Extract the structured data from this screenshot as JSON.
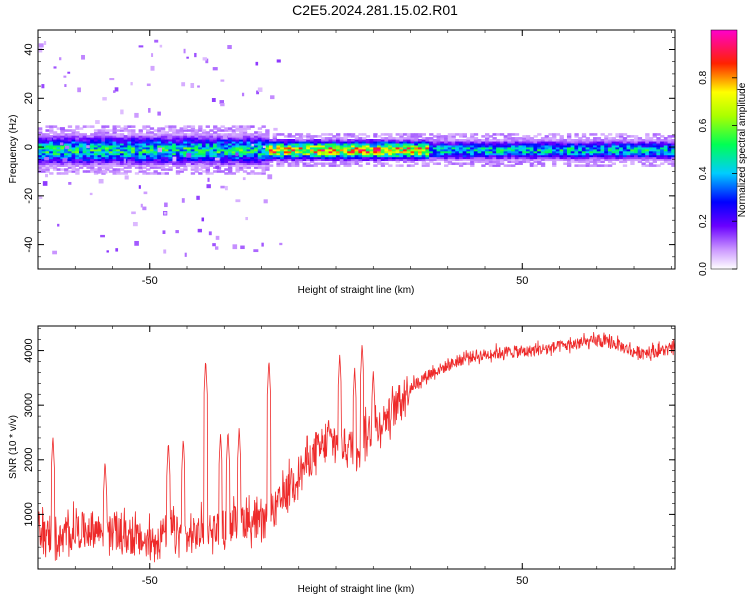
{
  "title": "C2E5.2024.281.15.02.R01",
  "colors": {
    "snr_line": "#ee2a2a",
    "frame": "#000000",
    "background": "#ffffff"
  },
  "chart_data": [
    {
      "type": "heatmap",
      "title": "C2E5.2024.281.15.02.R01",
      "xlabel": "Height of straight line (km)",
      "ylabel": "Frequency (Hz)",
      "xlim": [
        -80,
        91
      ],
      "ylim": [
        -50,
        48
      ],
      "x_ticks": [
        -50,
        50
      ],
      "y_ticks": [
        -40,
        -20,
        0,
        20,
        40
      ],
      "colorbar": {
        "label": "Normalized spectral amplitude",
        "range": [
          0,
          1
        ],
        "ticks": [
          0.0,
          0.2,
          0.4,
          0.6,
          0.8
        ],
        "tick_labels": [
          "0.0",
          "0.2",
          "0.4",
          "0.6",
          "0.8"
        ],
        "colormap": "rainbow (white-purple-blue-cyan-green-yellow-red-magenta)"
      },
      "band": {
        "center_hz": -1.5,
        "segments": [
          {
            "x_range": [
              -80,
              -18
            ],
            "half_width_hz": 6,
            "peak_amplitude": 0.55
          },
          {
            "x_range": [
              -18,
              25
            ],
            "half_width_hz": 4,
            "peak_amplitude": 0.85
          },
          {
            "x_range": [
              25,
              91
            ],
            "half_width_hz": 4,
            "peak_amplitude": 0.5
          }
        ]
      }
    },
    {
      "type": "line",
      "xlabel": "Height of straight line (km)",
      "ylabel": "SNR (10 * v/v)",
      "xlim": [
        -80,
        91
      ],
      "ylim": [
        0,
        4450
      ],
      "x_ticks": [
        -50,
        50
      ],
      "y_ticks": [
        1000,
        2000,
        3000,
        4000
      ],
      "series": [
        {
          "x": [
            -80,
            -75,
            -70,
            -65,
            -60,
            -55,
            -50,
            -45,
            -40,
            -35,
            -30,
            -25,
            -20,
            -15,
            -10,
            -5,
            0,
            5,
            10,
            15,
            20,
            25,
            30,
            35,
            40,
            45,
            50,
            55,
            60,
            65,
            70,
            75,
            80,
            85,
            90
          ],
          "values": [
            700,
            400,
            650,
            650,
            600,
            500,
            400,
            650,
            500,
            650,
            700,
            850,
            700,
            1150,
            1700,
            2100,
            2250,
            2150,
            2500,
            2800,
            3300,
            3550,
            3700,
            3850,
            3900,
            3950,
            3950,
            4000,
            4050,
            4100,
            4150,
            4100,
            3950,
            3950,
            4000
          ],
          "spikes": [
            {
              "x": -76,
              "value": 2450
            },
            {
              "x": -62,
              "value": 2000
            },
            {
              "x": -45,
              "value": 2350
            },
            {
              "x": -41,
              "value": 2400
            },
            {
              "x": -35,
              "value": 3850
            },
            {
              "x": -31,
              "value": 2500
            },
            {
              "x": -29,
              "value": 2550
            },
            {
              "x": -26,
              "value": 2600
            },
            {
              "x": -18,
              "value": 3850
            },
            {
              "x": -12,
              "value": 1900
            },
            {
              "x": -2,
              "value": 2800
            },
            {
              "x": 1,
              "value": 3950
            },
            {
              "x": 5,
              "value": 3700
            },
            {
              "x": 7,
              "value": 4150
            },
            {
              "x": 10,
              "value": 3650
            }
          ]
        }
      ]
    }
  ]
}
